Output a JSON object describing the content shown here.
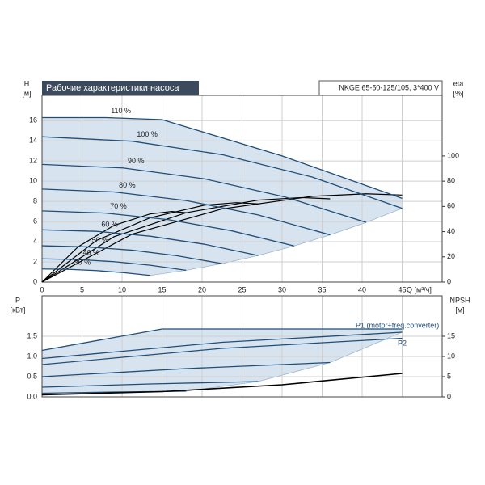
{
  "chart_data": [
    {
      "type": "line",
      "title": "Рабочие характеристики насоса",
      "subtitle": "NKGE 65-50-125/105, 3*400 V",
      "y_label": "H",
      "y_unit": "[м]",
      "y2_label": "eta",
      "y2_unit": "[%]",
      "x_label": "Q [м³/ч]",
      "xlim": [
        0,
        50
      ],
      "xticks": [
        0,
        5,
        10,
        15,
        20,
        25,
        30,
        35,
        40,
        45
      ],
      "ylim": [
        0,
        18.5
      ],
      "yticks": [
        0,
        2,
        4,
        6,
        8,
        10,
        12,
        14,
        16
      ],
      "y2lim": [
        0,
        148
      ],
      "y2ticks": [
        0,
        20,
        40,
        60,
        80,
        100
      ],
      "grid": true,
      "series": [
        {
          "name": "110 %",
          "color": "#1f4e79",
          "x": [
            0,
            8,
            15,
            30,
            45
          ],
          "values": [
            16.3,
            16.3,
            16.1,
            12.5,
            8.3
          ]
        },
        {
          "name": "100 %",
          "color": "#1f4e79",
          "x": [
            0,
            11.25,
            22.5,
            33.75,
            45
          ],
          "values": [
            14.4,
            13.96,
            12.63,
            10.41,
            7.31
          ]
        },
        {
          "name": "90 %",
          "color": "#1f4e79",
          "x": [
            0,
            10.1,
            20.3,
            30.4,
            40.5
          ],
          "values": [
            11.66,
            11.31,
            10.23,
            8.43,
            5.92
          ]
        },
        {
          "name": "80 %",
          "color": "#1f4e79",
          "x": [
            0,
            9,
            18,
            27,
            36
          ],
          "values": [
            9.22,
            8.93,
            8.08,
            6.66,
            4.68
          ]
        },
        {
          "name": "70 %",
          "color": "#1f4e79",
          "x": [
            0,
            7.9,
            15.8,
            23.6,
            31.5
          ],
          "values": [
            7.06,
            6.84,
            6.19,
            5.1,
            3.58
          ]
        },
        {
          "name": "60 %",
          "color": "#1f4e79",
          "x": [
            0,
            6.8,
            13.5,
            20.3,
            27
          ],
          "values": [
            5.18,
            5.03,
            4.55,
            3.75,
            2.63
          ]
        },
        {
          "name": "50 %",
          "color": "#1f4e79",
          "x": [
            0,
            5.6,
            11.3,
            16.9,
            22.5
          ],
          "values": [
            3.6,
            3.49,
            3.16,
            2.6,
            1.83
          ]
        },
        {
          "name": "40 %",
          "color": "#1f4e79",
          "x": [
            0,
            4.5,
            9,
            13.5,
            18
          ],
          "values": [
            2.3,
            2.23,
            2.02,
            1.67,
            1.17
          ]
        },
        {
          "name": "30 %",
          "color": "#1f4e79",
          "x": [
            0,
            3.4,
            6.8,
            10.1,
            13.5
          ],
          "values": [
            1.3,
            1.26,
            1.14,
            0.94,
            0.66
          ]
        }
      ],
      "eta_series": [
        {
          "color": "#000000",
          "axis": "y2",
          "x": [
            0,
            11.25,
            22.5,
            33.75,
            40.5,
            45
          ],
          "values": [
            0,
            38,
            58,
            68,
            70,
            69
          ]
        },
        {
          "color": "#000000",
          "axis": "y2",
          "x": [
            0,
            9,
            18,
            27,
            32.4,
            36
          ],
          "values": [
            0,
            36,
            55,
            65,
            67,
            66
          ]
        },
        {
          "color": "#000000",
          "axis": "y2",
          "x": [
            0,
            6.8,
            13.5,
            20.3,
            24.3,
            27
          ],
          "values": [
            0,
            33,
            51,
            61,
            63,
            62
          ]
        },
        {
          "color": "#000000",
          "axis": "y2",
          "x": [
            0,
            4.5,
            9,
            13.5,
            16.2,
            18
          ],
          "values": [
            0,
            28,
            45,
            54,
            56,
            55
          ]
        }
      ]
    },
    {
      "type": "line",
      "y_label": "P",
      "y_unit": "[кВт]",
      "y2_label": "NPSH",
      "y2_unit": "[м]",
      "ylim": [
        0,
        2.5
      ],
      "yticks": [
        {
          "value": 0,
          "label": "0.0"
        },
        {
          "value": 0.5,
          "label": "0.5"
        },
        {
          "value": 1,
          "label": "1.0"
        },
        {
          "value": 1.5,
          "label": "1.5"
        }
      ],
      "y2lim": [
        0,
        25
      ],
      "y2ticks": [
        0,
        5,
        10,
        15
      ],
      "grid": true,
      "annotations": [
        "P1 (motor+freq.converter)",
        "P2"
      ],
      "series": [
        {
          "color": "#1f4e79",
          "x": [
            0,
            15,
            45
          ],
          "values": [
            1.15,
            1.68,
            1.68
          ]
        },
        {
          "color": "#1f4e79",
          "x": [
            0,
            22.5,
            45
          ],
          "values": [
            0.95,
            1.35,
            1.6
          ]
        },
        {
          "color": "#1f4e79",
          "x": [
            0,
            18,
            36
          ],
          "values": [
            0.5,
            0.7,
            0.85
          ]
        },
        {
          "color": "#1f4e79",
          "x": [
            0,
            13.5,
            27
          ],
          "values": [
            0.24,
            0.32,
            0.38
          ]
        },
        {
          "color": "#1f4e79",
          "x": [
            0,
            9,
            18
          ],
          "values": [
            0.09,
            0.12,
            0.14
          ]
        }
      ],
      "p2": {
        "color": "#1f4e79",
        "x": [
          0,
          22.5,
          45
        ],
        "values": [
          0.8,
          1.2,
          1.45
        ]
      },
      "npsh": {
        "color": "#000000",
        "axis": "y2",
        "x": [
          0,
          15,
          30,
          45
        ],
        "values": [
          0.5,
          1.3,
          3,
          5.8
        ]
      }
    }
  ]
}
